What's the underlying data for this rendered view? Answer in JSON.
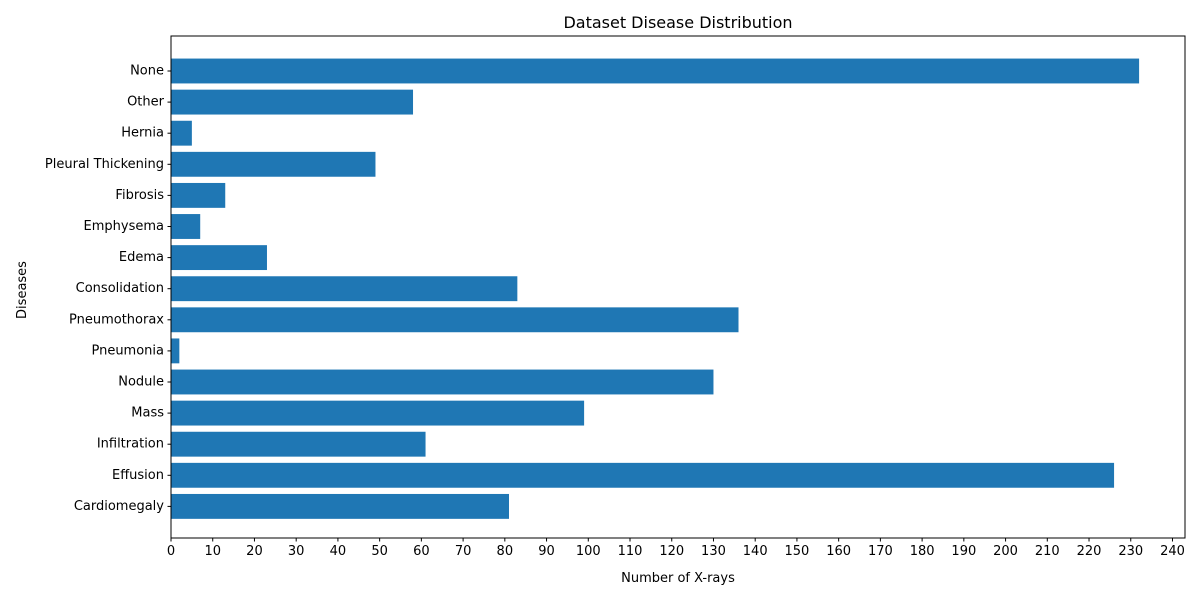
{
  "chart_data": {
    "type": "bar",
    "orientation": "horizontal",
    "title": "Dataset Disease Distribution",
    "xlabel": "Number of X-rays",
    "ylabel": "Diseases",
    "categories": [
      "Cardiomegaly",
      "Effusion",
      "Infiltration",
      "Mass",
      "Nodule",
      "Pneumonia",
      "Pneumothorax",
      "Consolidation",
      "Edema",
      "Emphysema",
      "Fibrosis",
      "Pleural Thickening",
      "Hernia",
      "Other",
      "None"
    ],
    "values": [
      81,
      226,
      61,
      99,
      130,
      2,
      136,
      83,
      23,
      7,
      13,
      49,
      5,
      58,
      232
    ],
    "xlim": [
      0,
      243
    ],
    "xticks": [
      0,
      10,
      20,
      30,
      40,
      50,
      60,
      70,
      80,
      90,
      100,
      110,
      120,
      130,
      140,
      150,
      160,
      170,
      180,
      190,
      200,
      210,
      220,
      230,
      240
    ],
    "grid": false,
    "legend": false,
    "bar_color": "#1f77b4"
  }
}
